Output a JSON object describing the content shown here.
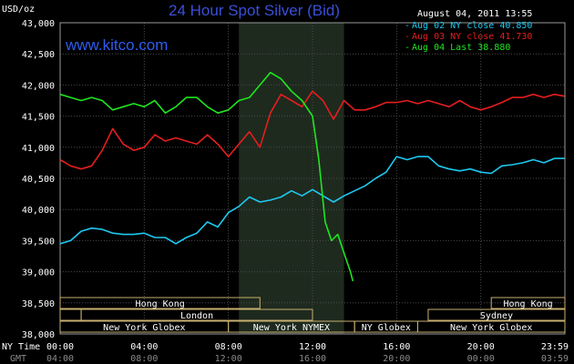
{
  "chart_data": {
    "type": "line",
    "title": "24 Hour Spot Silver (Bid)",
    "unit_label": "USD/oz",
    "website": "www.kitco.com",
    "timestamp": "August 04, 2011 13:55",
    "ylim": [
      38.0,
      43.0
    ],
    "y_ticks": [
      "43,000",
      "42,500",
      "42,000",
      "41,500",
      "41,000",
      "40,500",
      "40,000",
      "39,500",
      "39,000",
      "38,500",
      "38,000"
    ],
    "x_ticks_ny": [
      "00:00",
      "04:00",
      "08:00",
      "12:00",
      "16:00",
      "20:00",
      "23:59"
    ],
    "x_ticks_gmt": [
      "04:00",
      "08:00",
      "12:00",
      "16:00",
      "20:00",
      "00:00",
      "03:59"
    ],
    "x_row_labels": {
      "ny": "NY Time",
      "gmt": "GMT"
    },
    "shaded_hours": [
      8.5,
      13.5
    ],
    "legend": [
      {
        "text": "Aug 02 NY close 40.850",
        "color": "#1ec8f0"
      },
      {
        "text": "Aug 03 NY close 41.730",
        "color": "#e61e1e"
      },
      {
        "text": "Aug 04 Last 38.880",
        "color": "#1ee61e"
      }
    ],
    "series": [
      {
        "color": "#1ec8f0",
        "x": [
          0,
          0.5,
          1,
          1.5,
          2,
          2.5,
          3,
          3.5,
          4,
          4.5,
          5,
          5.5,
          6,
          6.5,
          7,
          7.5,
          8,
          8.5,
          9,
          9.5,
          10,
          10.5,
          11,
          11.5,
          12,
          12.5,
          13,
          13.5,
          14,
          14.5,
          15,
          15.5,
          16,
          16.5,
          17,
          17.5,
          18,
          18.5,
          19,
          19.5,
          20,
          20.5,
          21,
          21.5,
          22,
          22.5,
          23,
          23.5,
          23.98
        ],
        "values": [
          39.45,
          39.5,
          39.65,
          39.7,
          39.68,
          39.62,
          39.6,
          39.6,
          39.62,
          39.55,
          39.55,
          39.45,
          39.55,
          39.62,
          39.8,
          39.72,
          39.95,
          40.05,
          40.2,
          40.12,
          40.15,
          40.2,
          40.3,
          40.22,
          40.32,
          40.22,
          40.12,
          40.22,
          40.3,
          40.38,
          40.5,
          40.6,
          40.85,
          40.8,
          40.85,
          40.85,
          40.7,
          40.65,
          40.62,
          40.65,
          40.6,
          40.58,
          40.7,
          40.72,
          40.75,
          40.8,
          40.75,
          40.82,
          40.82
        ]
      },
      {
        "color": "#e61e1e",
        "x": [
          0,
          0.5,
          1,
          1.5,
          2,
          2.5,
          3,
          3.5,
          4,
          4.5,
          5,
          5.5,
          6,
          6.5,
          7,
          7.5,
          8,
          8.5,
          9,
          9.5,
          10,
          10.5,
          11,
          11.5,
          12,
          12.5,
          13,
          13.5,
          14,
          14.5,
          15,
          15.5,
          16,
          16.5,
          17,
          17.5,
          18,
          18.5,
          19,
          19.5,
          20,
          20.5,
          21,
          21.5,
          22,
          22.5,
          23,
          23.5,
          23.98
        ],
        "values": [
          40.8,
          40.7,
          40.65,
          40.7,
          40.95,
          41.3,
          41.05,
          40.95,
          41.0,
          41.2,
          41.1,
          41.15,
          41.1,
          41.05,
          41.2,
          41.05,
          40.85,
          41.05,
          41.25,
          41.0,
          41.55,
          41.85,
          41.75,
          41.65,
          41.9,
          41.75,
          41.45,
          41.75,
          41.6,
          41.6,
          41.65,
          41.72,
          41.72,
          41.75,
          41.7,
          41.75,
          41.7,
          41.65,
          41.75,
          41.65,
          41.6,
          41.65,
          41.72,
          41.8,
          41.8,
          41.85,
          41.8,
          41.85,
          41.82
        ]
      },
      {
        "color": "#1ee61e",
        "x": [
          0,
          0.5,
          1,
          1.5,
          2,
          2.5,
          3,
          3.5,
          4,
          4.5,
          5,
          5.5,
          6,
          6.5,
          7,
          7.5,
          8,
          8.5,
          9,
          9.5,
          10,
          10.5,
          11,
          11.5,
          12,
          12.3,
          12.6,
          12.9,
          13.2,
          13.5,
          13.8,
          13.92
        ],
        "values": [
          41.85,
          41.8,
          41.75,
          41.8,
          41.75,
          41.6,
          41.65,
          41.7,
          41.65,
          41.75,
          41.55,
          41.65,
          41.8,
          41.8,
          41.65,
          41.55,
          41.6,
          41.75,
          41.8,
          42.0,
          42.2,
          42.1,
          41.9,
          41.75,
          41.5,
          40.8,
          39.8,
          39.5,
          39.6,
          39.3,
          39.0,
          38.85
        ]
      }
    ],
    "sessions_row1": [
      {
        "label": "Hong Kong",
        "start": 0,
        "end": 9.5
      },
      {
        "label": "Hong Kong",
        "start": 20.5,
        "end": 24
      }
    ],
    "sessions_row2": [
      {
        "label": "",
        "start": 0,
        "end": 1.0
      },
      {
        "label": "London",
        "start": 1.0,
        "end": 12.0
      },
      {
        "label": "Sydney",
        "start": 17.5,
        "end": 24
      }
    ],
    "sessions_row3": [
      {
        "label": "New York Globex",
        "start": 0,
        "end": 8.0
      },
      {
        "label": "New York NYMEX",
        "start": 8.0,
        "end": 14.0
      },
      {
        "label": "NY Globex",
        "start": 14.0,
        "end": 17.0
      },
      {
        "label": "New York Globex",
        "start": 17.0,
        "end": 24
      }
    ]
  }
}
